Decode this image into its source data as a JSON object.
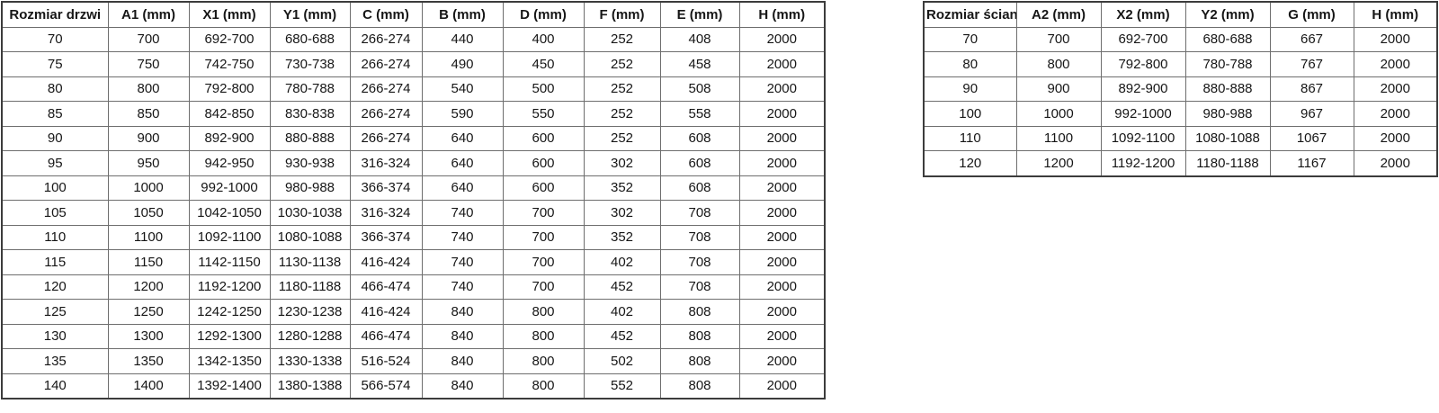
{
  "page": {
    "background_color": "#ffffff",
    "text_color": "#161616",
    "border_color": "#6e6e6e",
    "outer_border_color": "#3c3c3c"
  },
  "tables": [
    {
      "id": "door-size-table",
      "headers": [
        "Rozmiar drzwi",
        "A1 (mm)",
        "X1 (mm)",
        "Y1 (mm)",
        "C (mm)",
        "B (mm)",
        "D (mm)",
        "F (mm)",
        "E (mm)",
        "H (mm)"
      ],
      "rows": [
        [
          "70",
          "700",
          "692-700",
          "680-688",
          "266-274",
          "440",
          "400",
          "252",
          "408",
          "2000"
        ],
        [
          "75",
          "750",
          "742-750",
          "730-738",
          "266-274",
          "490",
          "450",
          "252",
          "458",
          "2000"
        ],
        [
          "80",
          "800",
          "792-800",
          "780-788",
          "266-274",
          "540",
          "500",
          "252",
          "508",
          "2000"
        ],
        [
          "85",
          "850",
          "842-850",
          "830-838",
          "266-274",
          "590",
          "550",
          "252",
          "558",
          "2000"
        ],
        [
          "90",
          "900",
          "892-900",
          "880-888",
          "266-274",
          "640",
          "600",
          "252",
          "608",
          "2000"
        ],
        [
          "95",
          "950",
          "942-950",
          "930-938",
          "316-324",
          "640",
          "600",
          "302",
          "608",
          "2000"
        ],
        [
          "100",
          "1000",
          "992-1000",
          "980-988",
          "366-374",
          "640",
          "600",
          "352",
          "608",
          "2000"
        ],
        [
          "105",
          "1050",
          "1042-1050",
          "1030-1038",
          "316-324",
          "740",
          "700",
          "302",
          "708",
          "2000"
        ],
        [
          "110",
          "1100",
          "1092-1100",
          "1080-1088",
          "366-374",
          "740",
          "700",
          "352",
          "708",
          "2000"
        ],
        [
          "115",
          "1150",
          "1142-1150",
          "1130-1138",
          "416-424",
          "740",
          "700",
          "402",
          "708",
          "2000"
        ],
        [
          "120",
          "1200",
          "1192-1200",
          "1180-1188",
          "466-474",
          "740",
          "700",
          "452",
          "708",
          "2000"
        ],
        [
          "125",
          "1250",
          "1242-1250",
          "1230-1238",
          "416-424",
          "840",
          "800",
          "402",
          "808",
          "2000"
        ],
        [
          "130",
          "1300",
          "1292-1300",
          "1280-1288",
          "466-474",
          "840",
          "800",
          "452",
          "808",
          "2000"
        ],
        [
          "135",
          "1350",
          "1342-1350",
          "1330-1338",
          "516-524",
          "840",
          "800",
          "502",
          "808",
          "2000"
        ],
        [
          "140",
          "1400",
          "1392-1400",
          "1380-1388",
          "566-574",
          "840",
          "800",
          "552",
          "808",
          "2000"
        ]
      ]
    },
    {
      "id": "wall-size-table",
      "headers": [
        "Rozmiar ścianki",
        "A2 (mm)",
        "X2 (mm)",
        "Y2 (mm)",
        "G (mm)",
        "H (mm)"
      ],
      "rows": [
        [
          "70",
          "700",
          "692-700",
          "680-688",
          "667",
          "2000"
        ],
        [
          "80",
          "800",
          "792-800",
          "780-788",
          "767",
          "2000"
        ],
        [
          "90",
          "900",
          "892-900",
          "880-888",
          "867",
          "2000"
        ],
        [
          "100",
          "1000",
          "992-1000",
          "980-988",
          "967",
          "2000"
        ],
        [
          "110",
          "1100",
          "1092-1100",
          "1080-1088",
          "1067",
          "2000"
        ],
        [
          "120",
          "1200",
          "1192-1200",
          "1180-1188",
          "1167",
          "2000"
        ]
      ]
    }
  ]
}
